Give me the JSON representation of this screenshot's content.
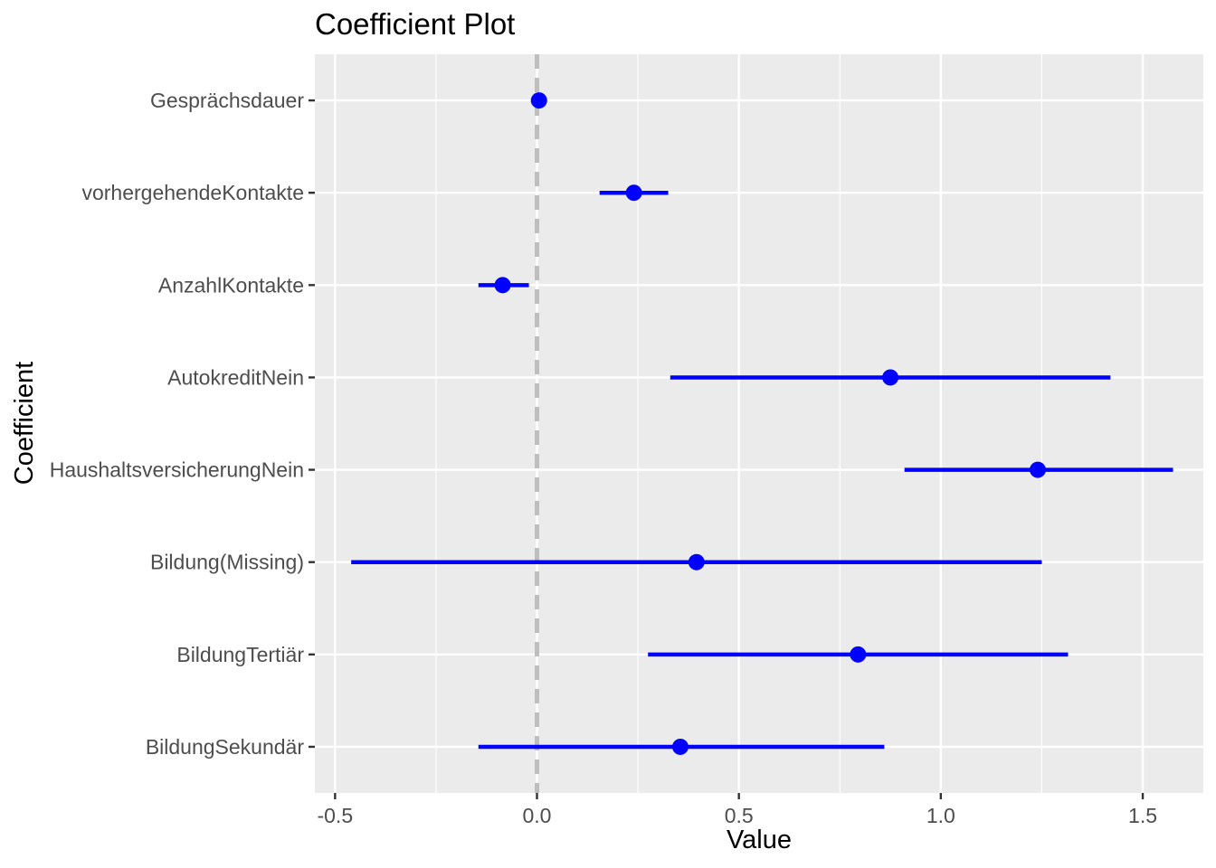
{
  "chart_data": {
    "type": "coefficient-plot",
    "title": "Coefficient Plot",
    "xlabel": "Value",
    "ylabel": "Coefficient",
    "xlim": [
      -0.55,
      1.65
    ],
    "x_ticks": [
      -0.5,
      0.0,
      0.5,
      1.0,
      1.5
    ],
    "x_tick_labels": [
      "-0.5",
      "0.0",
      "0.5",
      "1.0",
      "1.5"
    ],
    "reference_line": 0.0,
    "grid": true,
    "colors": {
      "point": "#0000ff",
      "interval": "#0000ff",
      "reference_line": "#bebebe",
      "panel": "#ebebeb",
      "grid": "#ffffff"
    },
    "coefficients": [
      {
        "name": "Gesprächsdauer",
        "value": 0.005,
        "low": 0.0,
        "high": 0.01
      },
      {
        "name": "vorhergehendeKontakte",
        "value": 0.24,
        "low": 0.155,
        "high": 0.325
      },
      {
        "name": "AnzahlKontakte",
        "value": -0.085,
        "low": -0.145,
        "high": -0.02
      },
      {
        "name": "AutokreditNein",
        "value": 0.875,
        "low": 0.33,
        "high": 1.42
      },
      {
        "name": "HaushaltsversicherungNein",
        "value": 1.24,
        "low": 0.91,
        "high": 1.575
      },
      {
        "name": "Bildung(Missing)",
        "value": 0.395,
        "low": -0.46,
        "high": 1.25
      },
      {
        "name": "BildungTertiär",
        "value": 0.795,
        "low": 0.275,
        "high": 1.315
      },
      {
        "name": "BildungSekundär",
        "value": 0.355,
        "low": -0.145,
        "high": 0.86
      }
    ]
  }
}
